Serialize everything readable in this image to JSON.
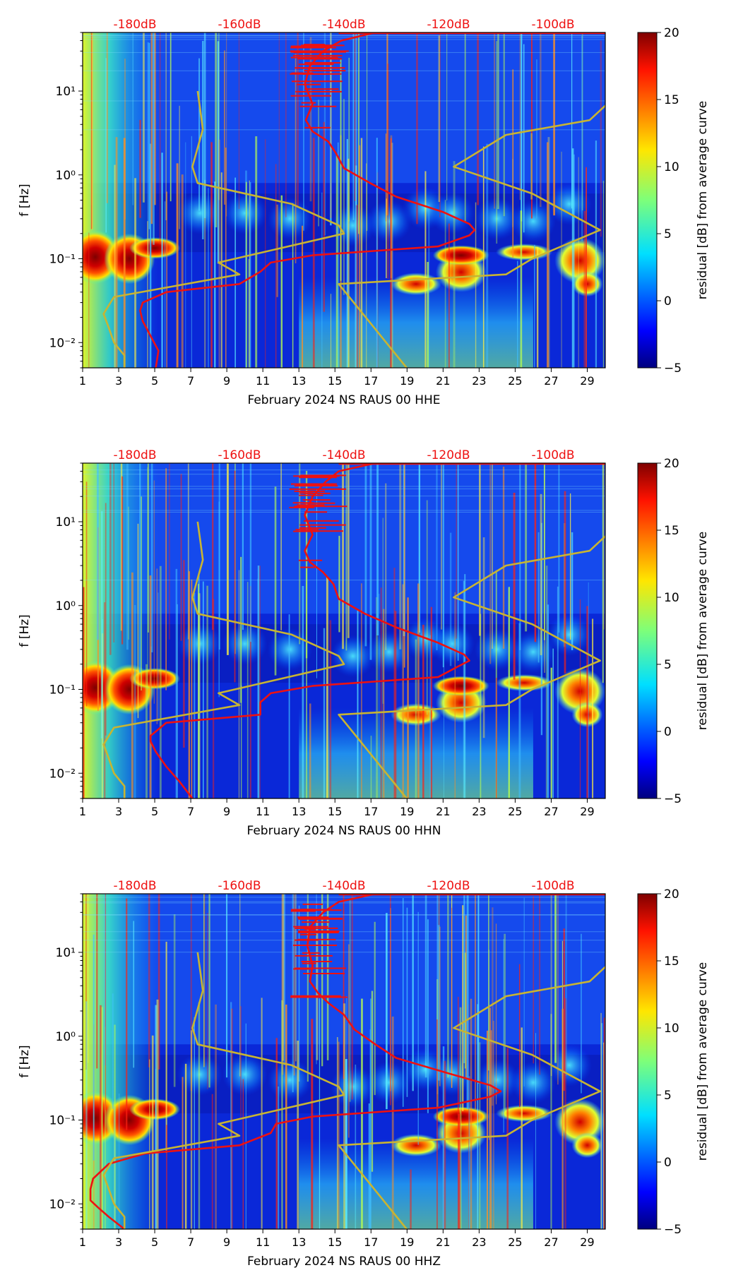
{
  "chart_data": [
    {
      "type": "heatmap",
      "title": "",
      "xlabel": "February 2024 NS RAUS 00 HHE",
      "ylabel": "f [Hz]",
      "xlim": [
        1,
        30
      ],
      "xticks": [
        1,
        3,
        5,
        7,
        9,
        11,
        13,
        15,
        17,
        19,
        21,
        23,
        25,
        27,
        29
      ],
      "ylim": [
        0.005,
        50
      ],
      "yscale": "log",
      "ytick_labels": [
        "10⁻²",
        "10⁻¹",
        "10⁰",
        "10¹"
      ],
      "ytick_values": [
        0.01,
        0.1,
        1,
        10
      ],
      "top_axis_labels": [
        "-180dB",
        "-160dB",
        "-140dB",
        "-120dB",
        "-100dB"
      ],
      "top_axis_db": [
        -180,
        -160,
        -140,
        -120,
        -100
      ],
      "colorbar": {
        "label": "residual [dB] from average curve",
        "min": -5,
        "max": 20,
        "ticks": [
          -5,
          0,
          5,
          10,
          15,
          20
        ],
        "tick_labels": [
          "−5",
          "0",
          "5",
          "10",
          "15",
          "20"
        ]
      },
      "series": [
        {
          "name": "average PSD",
          "color": "#ee1111",
          "points": [
            [
              -176,
              0.005
            ],
            [
              -175.5,
              0.008
            ],
            [
              -177,
              0.012
            ],
            [
              -178.5,
              0.018
            ],
            [
              -179,
              0.024
            ],
            [
              -178.5,
              0.03
            ],
            [
              -174,
              0.04
            ],
            [
              -160,
              0.05
            ],
            [
              -156,
              0.07
            ],
            [
              -154,
              0.09
            ],
            [
              -146,
              0.11
            ],
            [
              -122,
              0.14
            ],
            [
              -116,
              0.19
            ],
            [
              -115,
              0.22
            ],
            [
              -116,
              0.26
            ],
            [
              -121,
              0.36
            ],
            [
              -130,
              0.55
            ],
            [
              -135,
              0.8
            ],
            [
              -140,
              1.2
            ],
            [
              -141.5,
              1.8
            ],
            [
              -143,
              2.5
            ],
            [
              -146,
              3.3
            ],
            [
              -147.3,
              4.5
            ],
            [
              -146,
              7
            ],
            [
              -147.5,
              12
            ],
            [
              -146.5,
              20
            ],
            [
              -144,
              30
            ],
            [
              -140.5,
              40
            ],
            [
              -134,
              50
            ]
          ]
        },
        {
          "name": "NLNM",
          "color": "#c8b432",
          "points": [
            [
              -182,
              0.005
            ],
            [
              -182,
              0.007
            ],
            [
              -184,
              0.01
            ],
            [
              -185,
              0.015
            ],
            [
              -186,
              0.022
            ],
            [
              -184,
              0.035
            ],
            [
              -160,
              0.065
            ],
            [
              -164,
              0.09
            ],
            [
              -140,
              0.2
            ],
            [
              -141,
              0.25
            ],
            [
              -150,
              0.45
            ],
            [
              -168,
              0.8
            ],
            [
              -169,
              1.25
            ],
            [
              -167,
              3.5
            ],
            [
              -167.5,
              6
            ],
            [
              -168,
              10
            ]
          ]
        },
        {
          "name": "NHNM",
          "color": "#c8b432",
          "points": [
            [
              -128,
              0.005
            ],
            [
              -141,
              0.05
            ],
            [
              -109,
              0.065
            ],
            [
              -104,
              0.1
            ],
            [
              -91,
              0.22
            ],
            [
              -104,
              0.6
            ],
            [
              -119,
              1.25
            ],
            [
              -109,
              3
            ],
            [
              -93,
              4.5
            ],
            [
              -87,
              10
            ]
          ]
        }
      ],
      "bright_events": [
        {
          "day": 1.7,
          "fmin": 0.05,
          "fmax": 0.22,
          "dB": 20
        },
        {
          "day": 3.6,
          "fmin": 0.05,
          "fmax": 0.2,
          "dB": 20
        },
        {
          "day": 5.0,
          "fmin": 0.1,
          "fmax": 0.18,
          "dB": 20
        },
        {
          "day": 22.0,
          "fmin": 0.04,
          "fmax": 0.12,
          "dB": 18
        },
        {
          "day": 28.6,
          "fmin": 0.05,
          "fmax": 0.18,
          "dB": 17
        }
      ]
    },
    {
      "type": "heatmap",
      "title": "",
      "xlabel": "February 2024 NS RAUS 00 HHN",
      "ylabel": "f [Hz]",
      "xlim": [
        1,
        30
      ],
      "xticks": [
        1,
        3,
        5,
        7,
        9,
        11,
        13,
        15,
        17,
        19,
        21,
        23,
        25,
        27,
        29
      ],
      "ylim": [
        0.005,
        50
      ],
      "yscale": "log",
      "ytick_labels": [
        "10⁻²",
        "10⁻¹",
        "10⁰",
        "10¹"
      ],
      "ytick_values": [
        0.01,
        0.1,
        1,
        10
      ],
      "top_axis_labels": [
        "-180dB",
        "-160dB",
        "-140dB",
        "-120dB",
        "-100dB"
      ],
      "top_axis_db": [
        -180,
        -160,
        -140,
        -120,
        -100
      ],
      "colorbar": {
        "label": "residual [dB] from average curve",
        "min": -5,
        "max": 20,
        "ticks": [
          -5,
          0,
          5,
          10,
          15,
          20
        ],
        "tick_labels": [
          "−5",
          "0",
          "5",
          "10",
          "15",
          "20"
        ]
      },
      "series": [
        {
          "name": "average PSD",
          "color": "#ee1111",
          "points": [
            [
              -169,
              0.005
            ],
            [
              -171.5,
              0.008
            ],
            [
              -174,
              0.012
            ],
            [
              -176,
              0.018
            ],
            [
              -177,
              0.024
            ],
            [
              -177,
              0.028
            ],
            [
              -174,
              0.04
            ],
            [
              -156,
              0.05
            ],
            [
              -156,
              0.07
            ],
            [
              -154,
              0.09
            ],
            [
              -146,
              0.11
            ],
            [
              -122,
              0.14
            ],
            [
              -118,
              0.19
            ],
            [
              -116,
              0.22
            ],
            [
              -117,
              0.26
            ],
            [
              -122,
              0.36
            ],
            [
              -130,
              0.55
            ],
            [
              -136,
              0.8
            ],
            [
              -141,
              1.2
            ],
            [
              -142,
              1.8
            ],
            [
              -144,
              2.5
            ],
            [
              -146.5,
              3.3
            ],
            [
              -147.5,
              4.5
            ],
            [
              -146,
              7
            ],
            [
              -147.5,
              12
            ],
            [
              -146,
              20
            ],
            [
              -143.5,
              30
            ],
            [
              -141,
              40
            ],
            [
              -134,
              50
            ]
          ]
        },
        {
          "name": "NLNM",
          "color": "#c8b432",
          "points": [
            [
              -182,
              0.005
            ],
            [
              -182,
              0.007
            ],
            [
              -184,
              0.01
            ],
            [
              -185,
              0.015
            ],
            [
              -186,
              0.022
            ],
            [
              -184,
              0.035
            ],
            [
              -160,
              0.065
            ],
            [
              -164,
              0.09
            ],
            [
              -140,
              0.2
            ],
            [
              -141,
              0.25
            ],
            [
              -150,
              0.45
            ],
            [
              -168,
              0.8
            ],
            [
              -169,
              1.25
            ],
            [
              -167,
              3.5
            ],
            [
              -167.5,
              6
            ],
            [
              -168,
              10
            ]
          ]
        },
        {
          "name": "NHNM",
          "color": "#c8b432",
          "points": [
            [
              -128,
              0.005
            ],
            [
              -141,
              0.05
            ],
            [
              -109,
              0.065
            ],
            [
              -104,
              0.1
            ],
            [
              -91,
              0.22
            ],
            [
              -104,
              0.6
            ],
            [
              -119,
              1.25
            ],
            [
              -109,
              3
            ],
            [
              -93,
              4.5
            ],
            [
              -87,
              10
            ]
          ]
        }
      ],
      "bright_events": [
        {
          "day": 1.7,
          "fmin": 0.05,
          "fmax": 0.22,
          "dB": 20
        },
        {
          "day": 3.6,
          "fmin": 0.05,
          "fmax": 0.2,
          "dB": 20
        },
        {
          "day": 5.0,
          "fmin": 0.1,
          "fmax": 0.18,
          "dB": 20
        },
        {
          "day": 22.0,
          "fmin": 0.04,
          "fmax": 0.12,
          "dB": 18
        },
        {
          "day": 28.6,
          "fmin": 0.05,
          "fmax": 0.18,
          "dB": 17
        }
      ]
    },
    {
      "type": "heatmap",
      "title": "",
      "xlabel": "February 2024 NS RAUS 00 HHZ",
      "ylabel": "f [Hz]",
      "xlim": [
        1,
        30
      ],
      "xticks": [
        1,
        3,
        5,
        7,
        9,
        11,
        13,
        15,
        17,
        19,
        21,
        23,
        25,
        27,
        29
      ],
      "ylim": [
        0.005,
        50
      ],
      "yscale": "log",
      "ytick_labels": [
        "10⁻²",
        "10⁻¹",
        "10⁰",
        "10¹"
      ],
      "ytick_values": [
        0.01,
        0.1,
        1,
        10
      ],
      "top_axis_labels": [
        "-180dB",
        "-160dB",
        "-140dB",
        "-120dB",
        "-100dB"
      ],
      "top_axis_db": [
        -180,
        -160,
        -140,
        -120,
        -100
      ],
      "colorbar": {
        "label": "residual [dB] from average curve",
        "min": -5,
        "max": 20,
        "ticks": [
          -5,
          0,
          5,
          10,
          15,
          20
        ],
        "tick_labels": [
          "−5",
          "0",
          "5",
          "10",
          "15",
          "20"
        ]
      },
      "series": [
        {
          "name": "average PSD",
          "color": "#ee1111",
          "points": [
            [
              -182,
              0.005
            ],
            [
              -185,
              0.007
            ],
            [
              -187,
              0.009
            ],
            [
              -188.5,
              0.011
            ],
            [
              -188.5,
              0.015
            ],
            [
              -188,
              0.02
            ],
            [
              -185,
              0.03
            ],
            [
              -178,
              0.04
            ],
            [
              -160,
              0.05
            ],
            [
              -154,
              0.07
            ],
            [
              -153,
              0.09
            ],
            [
              -146,
              0.11
            ],
            [
              -122,
              0.14
            ],
            [
              -112,
              0.19
            ],
            [
              -110,
              0.22
            ],
            [
              -112,
              0.26
            ],
            [
              -120,
              0.36
            ],
            [
              -130,
              0.55
            ],
            [
              -134,
              0.8
            ],
            [
              -138,
              1.2
            ],
            [
              -140,
              1.8
            ],
            [
              -143,
              2.5
            ],
            [
              -145,
              3.3
            ],
            [
              -146.5,
              4.5
            ],
            [
              -146,
              7
            ],
            [
              -147,
              12
            ],
            [
              -146.5,
              20
            ],
            [
              -144,
              30
            ],
            [
              -141,
              40
            ],
            [
              -134,
              50
            ]
          ]
        },
        {
          "name": "NLNM",
          "color": "#c8b432",
          "points": [
            [
              -182,
              0.005
            ],
            [
              -182,
              0.007
            ],
            [
              -184,
              0.01
            ],
            [
              -185,
              0.015
            ],
            [
              -186,
              0.022
            ],
            [
              -184,
              0.035
            ],
            [
              -160,
              0.065
            ],
            [
              -164,
              0.09
            ],
            [
              -140,
              0.2
            ],
            [
              -141,
              0.25
            ],
            [
              -150,
              0.45
            ],
            [
              -168,
              0.8
            ],
            [
              -169,
              1.25
            ],
            [
              -167,
              3.5
            ],
            [
              -167.5,
              6
            ],
            [
              -168,
              10
            ]
          ]
        },
        {
          "name": "NHNM",
          "color": "#c8b432",
          "points": [
            [
              -128,
              0.005
            ],
            [
              -141,
              0.05
            ],
            [
              -109,
              0.065
            ],
            [
              -104,
              0.1
            ],
            [
              -91,
              0.22
            ],
            [
              -104,
              0.6
            ],
            [
              -119,
              1.25
            ],
            [
              -109,
              3
            ],
            [
              -93,
              4.5
            ],
            [
              -87,
              10
            ]
          ]
        }
      ],
      "bright_events": [
        {
          "day": 1.7,
          "fmin": 0.05,
          "fmax": 0.22,
          "dB": 20
        },
        {
          "day": 3.6,
          "fmin": 0.05,
          "fmax": 0.2,
          "dB": 20
        },
        {
          "day": 5.0,
          "fmin": 0.1,
          "fmax": 0.18,
          "dB": 20
        },
        {
          "day": 22.0,
          "fmin": 0.04,
          "fmax": 0.12,
          "dB": 18
        },
        {
          "day": 28.6,
          "fmin": 0.05,
          "fmax": 0.18,
          "dB": 17
        }
      ]
    }
  ]
}
